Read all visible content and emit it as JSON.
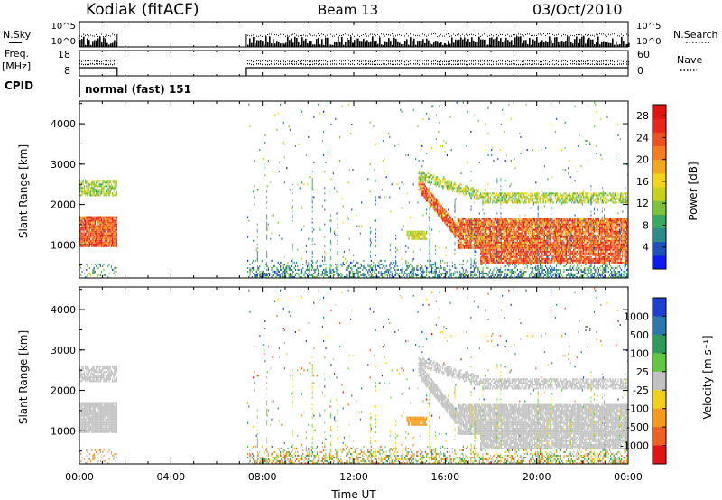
{
  "header": {
    "station": "Kodiak (fitACF)",
    "beam": "Beam 13",
    "date": "03/Oct/2010"
  },
  "status_panels": {
    "nsky_label": "N.Sky",
    "nsearch_label": "N.Search",
    "noise_ticks": [
      "10^5",
      "10^0"
    ],
    "freq_label": "Freq.",
    "freq_unit": "[MHz]",
    "freq_ticks": [
      "18",
      "8"
    ],
    "nave_label": "Nave",
    "nave_ticks": [
      "60",
      "0"
    ],
    "cpid_label": "CPID",
    "cpid_text": "normal (fast) 151"
  },
  "chart_data": [
    {
      "type": "heatmap",
      "name": "power",
      "ylabel": "Slant Range [km]",
      "xlabel": "",
      "ylim": [
        180,
        4560
      ],
      "xlim_hours": [
        0,
        24
      ],
      "y_ticks": [
        "1000",
        "2000",
        "3000",
        "4000"
      ],
      "colorbar": {
        "label": "Power [dB]",
        "ticks": [
          "4",
          "8",
          "12",
          "16",
          "20",
          "24",
          "28"
        ],
        "range": [
          0,
          30
        ],
        "colors": [
          "#0a1cf2",
          "#1f4fb8",
          "#2f8a8a",
          "#3aa860",
          "#7cc23a",
          "#c8d21a",
          "#f2d419",
          "#f5a81d",
          "#f57c1f",
          "#f0501f",
          "#e8261c",
          "#e11414"
        ]
      },
      "data_gaps_hours": [
        [
          1.65,
          7.3
        ]
      ],
      "features": [
        {
          "name": "early band",
          "t": [
            0,
            1.65
          ],
          "range_km": [
            900,
            1700
          ],
          "value_db": 26
        },
        {
          "name": "early upper band",
          "t": [
            0,
            1.65
          ],
          "range_km": [
            2200,
            2600
          ],
          "value_db": 12
        },
        {
          "name": "near-range clutter",
          "t": [
            7.3,
            24
          ],
          "range_km": [
            200,
            600
          ],
          "value_db": 8
        },
        {
          "name": "descending echo",
          "t": [
            14.8,
            24
          ],
          "range_km": [
            900,
            2600
          ],
          "value_db": 24
        },
        {
          "name": "late lower band",
          "t": [
            17.5,
            24
          ],
          "range_km": [
            500,
            1000
          ],
          "value_db": 24
        },
        {
          "name": "late upper band",
          "t": [
            16.5,
            24
          ],
          "range_km": [
            2000,
            2500
          ],
          "value_db": 14
        },
        {
          "name": "patch",
          "t": [
            14.3,
            15.2
          ],
          "range_km": [
            1100,
            1300
          ],
          "value_db": 14
        }
      ]
    },
    {
      "type": "heatmap",
      "name": "velocity",
      "ylabel": "Slant Range [km]",
      "xlabel": "Time UT",
      "ylim": [
        180,
        4560
      ],
      "xlim_hours": [
        0,
        24
      ],
      "y_ticks": [
        "1000",
        "2000",
        "3000",
        "4000"
      ],
      "x_ticks": [
        "00:00",
        "04:00",
        "08:00",
        "12:00",
        "16:00",
        "20:00",
        "00:00"
      ],
      "colorbar": {
        "label": "Velocity [m s⁻¹]",
        "ticks": [
          "1000",
          "500",
          "100",
          "25",
          "-25",
          "-100",
          "-500",
          "-1000"
        ],
        "colors": [
          "#1b3fd0",
          "#2c78a8",
          "#2f9a5a",
          "#63c640",
          "#c2c2c2",
          "#f0d01a",
          "#f59a1c",
          "#f0601f",
          "#e11414"
        ]
      },
      "data_gaps_hours": [
        [
          1.65,
          7.3
        ]
      ],
      "features": [
        {
          "name": "early band",
          "t": [
            0,
            1.65
          ],
          "range_km": [
            900,
            1700
          ],
          "value": "ground scatter"
        },
        {
          "name": "descending echo",
          "t": [
            14.8,
            24
          ],
          "range_km": [
            900,
            2600
          ],
          "value": "ground scatter"
        },
        {
          "name": "orange patch",
          "t": [
            14.3,
            15.2
          ],
          "range_km": [
            1100,
            1300
          ],
          "value_ms": -200
        }
      ]
    }
  ]
}
